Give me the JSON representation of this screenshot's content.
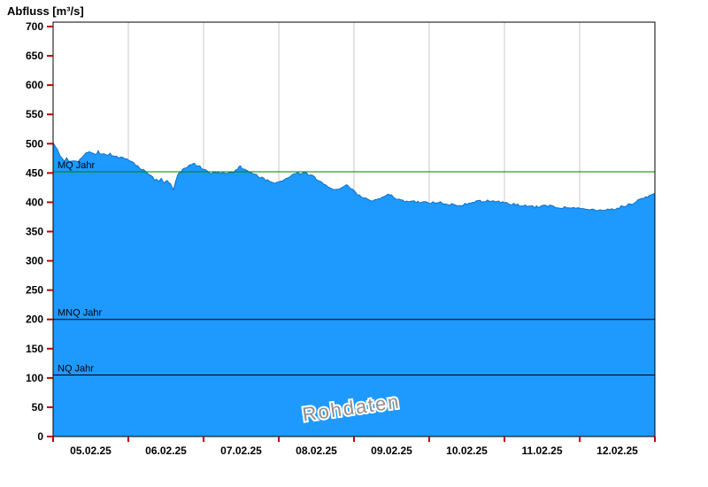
{
  "chart_data": {
    "type": "area",
    "title": "Abfluss [m³/s]",
    "watermark": "Rohdaten",
    "xlabel": "",
    "ylabel": "Abfluss [m³/s]",
    "ylim": [
      0,
      700
    ],
    "y_tick_step": 50,
    "x_labels": [
      "05.02.25",
      "06.02.25",
      "07.02.25",
      "08.02.25",
      "09.02.25",
      "10.02.25",
      "11.02.25",
      "12.02.25"
    ],
    "grid": "vertical-day-lines",
    "legend": "none",
    "reference_lines": [
      {
        "label": "MQ Jahr",
        "value": 452,
        "color": "#008000"
      },
      {
        "label": "MNQ Jahr",
        "value": 200,
        "color": "#000000"
      },
      {
        "label": "NQ Jahr",
        "value": 105,
        "color": "#000000"
      }
    ],
    "colors": {
      "fill": "#1E9AFF",
      "line": "#0D6FC8",
      "grid": "#c8c8c8",
      "tick": "#c00000",
      "border": "#000000",
      "watermark": "#8f8f8f"
    },
    "series": [
      {
        "name": "Abfluss Rohdaten",
        "unit": "m³/s",
        "x_unit": "days since 05.02.25 00:00",
        "points": [
          [
            0,
            500
          ],
          [
            0.03,
            494
          ],
          [
            0.06,
            488
          ],
          [
            0.09,
            480
          ],
          [
            0.12,
            473
          ],
          [
            0.15,
            470
          ],
          [
            0.18,
            474
          ],
          [
            0.21,
            471
          ],
          [
            0.24,
            469
          ],
          [
            0.27,
            472
          ],
          [
            0.3,
            470
          ],
          [
            0.33,
            468
          ],
          [
            0.36,
            472
          ],
          [
            0.4,
            478
          ],
          [
            0.44,
            484
          ],
          [
            0.48,
            487
          ],
          [
            0.52,
            485
          ],
          [
            0.56,
            483
          ],
          [
            0.6,
            486
          ],
          [
            0.64,
            483
          ],
          [
            0.68,
            481
          ],
          [
            0.72,
            480
          ],
          [
            0.76,
            482
          ],
          [
            0.8,
            479
          ],
          [
            0.84,
            478
          ],
          [
            0.88,
            477
          ],
          [
            0.92,
            476
          ],
          [
            0.96,
            475
          ],
          [
            1,
            473
          ],
          [
            1.05,
            469
          ],
          [
            1.1,
            464
          ],
          [
            1.15,
            459
          ],
          [
            1.2,
            455
          ],
          [
            1.25,
            450
          ],
          [
            1.3,
            444
          ],
          [
            1.35,
            439
          ],
          [
            1.4,
            436
          ],
          [
            1.44,
            439
          ],
          [
            1.48,
            433
          ],
          [
            1.52,
            437
          ],
          [
            1.56,
            431
          ],
          [
            1.6,
            420
          ],
          [
            1.63,
            436
          ],
          [
            1.66,
            446
          ],
          [
            1.7,
            452
          ],
          [
            1.74,
            457
          ],
          [
            1.78,
            461
          ],
          [
            1.82,
            465
          ],
          [
            1.86,
            467
          ],
          [
            1.9,
            464
          ],
          [
            1.95,
            461
          ],
          [
            2,
            457
          ],
          [
            2.05,
            452
          ],
          [
            2.1,
            449
          ],
          [
            2.15,
            451
          ],
          [
            2.2,
            450
          ],
          [
            2.25,
            452
          ],
          [
            2.3,
            450
          ],
          [
            2.35,
            451
          ],
          [
            2.4,
            452
          ],
          [
            2.45,
            456
          ],
          [
            2.49,
            462
          ],
          [
            2.53,
            457
          ],
          [
            2.57,
            453
          ],
          [
            2.61,
            451
          ],
          [
            2.65,
            449
          ],
          [
            2.7,
            446
          ],
          [
            2.75,
            443
          ],
          [
            2.8,
            440
          ],
          [
            2.85,
            438
          ],
          [
            2.9,
            436
          ],
          [
            2.95,
            434
          ],
          [
            3,
            433
          ],
          [
            3.05,
            437
          ],
          [
            3.1,
            441
          ],
          [
            3.15,
            445
          ],
          [
            3.2,
            448
          ],
          [
            3.25,
            451
          ],
          [
            3.3,
            448
          ],
          [
            3.35,
            450
          ],
          [
            3.4,
            447
          ],
          [
            3.45,
            444
          ],
          [
            3.5,
            440
          ],
          [
            3.55,
            436
          ],
          [
            3.6,
            432
          ],
          [
            3.65,
            428
          ],
          [
            3.7,
            425
          ],
          [
            3.75,
            422
          ],
          [
            3.8,
            424
          ],
          [
            3.85,
            427
          ],
          [
            3.9,
            428
          ],
          [
            3.95,
            424
          ],
          [
            4,
            419
          ],
          [
            4.05,
            414
          ],
          [
            4.1,
            410
          ],
          [
            4.15,
            407
          ],
          [
            4.2,
            404
          ],
          [
            4.25,
            402
          ],
          [
            4.3,
            404
          ],
          [
            4.35,
            406
          ],
          [
            4.4,
            410
          ],
          [
            4.45,
            414
          ],
          [
            4.5,
            412
          ],
          [
            4.55,
            408
          ],
          [
            4.6,
            404
          ],
          [
            4.65,
            402
          ],
          [
            4.7,
            401
          ],
          [
            4.75,
            400
          ],
          [
            4.8,
            401
          ],
          [
            4.85,
            400
          ],
          [
            4.9,
            399
          ],
          [
            4.95,
            400
          ],
          [
            5,
            400
          ],
          [
            5.1,
            400
          ],
          [
            5.2,
            398
          ],
          [
            5.3,
            396
          ],
          [
            5.4,
            395
          ],
          [
            5.5,
            397
          ],
          [
            5.6,
            400
          ],
          [
            5.7,
            402
          ],
          [
            5.8,
            403
          ],
          [
            5.9,
            401
          ],
          [
            6,
            400
          ],
          [
            6.1,
            397
          ],
          [
            6.2,
            395
          ],
          [
            6.3,
            393
          ],
          [
            6.4,
            392
          ],
          [
            6.5,
            393
          ],
          [
            6.6,
            394
          ],
          [
            6.7,
            392
          ],
          [
            6.8,
            391
          ],
          [
            6.9,
            390
          ],
          [
            7,
            390
          ],
          [
            7.1,
            388
          ],
          [
            7.2,
            386
          ],
          [
            7.3,
            385
          ],
          [
            7.4,
            387
          ],
          [
            7.5,
            390
          ],
          [
            7.6,
            394
          ],
          [
            7.7,
            398
          ],
          [
            7.8,
            404
          ],
          [
            7.9,
            410
          ],
          [
            8,
            415
          ]
        ]
      }
    ]
  }
}
